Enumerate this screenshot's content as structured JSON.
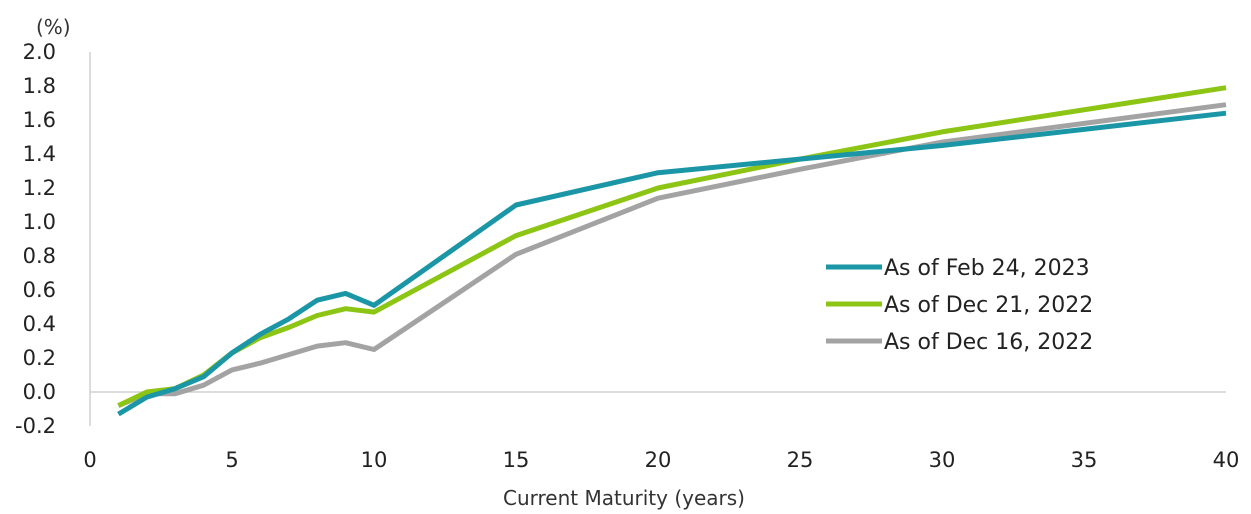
{
  "chart_data": {
    "type": "line",
    "title": "",
    "xlabel": "Current Maturity (years)",
    "ylabel": "(%)",
    "xlim": [
      0,
      40
    ],
    "ylim": [
      -0.2,
      2.0
    ],
    "x_ticks": [
      0,
      5,
      10,
      15,
      20,
      25,
      30,
      35,
      40
    ],
    "y_ticks": [
      -0.2,
      0.0,
      0.2,
      0.4,
      0.6,
      0.8,
      1.0,
      1.2,
      1.4,
      1.6,
      1.8,
      2.0
    ],
    "x_tick_labels": [
      "0",
      "5",
      "10",
      "15",
      "20",
      "25",
      "30",
      "35",
      "40"
    ],
    "y_tick_labels": [
      "-0.2",
      "0.0",
      "0.2",
      "0.4",
      "0.6",
      "0.8",
      "1.0",
      "1.2",
      "1.4",
      "1.6",
      "1.8",
      "2.0"
    ],
    "grid": false,
    "legend_position": "middle-right",
    "series": [
      {
        "name": "As of Feb 24, 2023",
        "color": "#1a96a6",
        "x": [
          1,
          2,
          3,
          4,
          5,
          6,
          7,
          8,
          9,
          10,
          15,
          20,
          25,
          30,
          40
        ],
        "y": [
          -0.13,
          -0.03,
          0.02,
          0.09,
          0.23,
          0.34,
          0.43,
          0.54,
          0.58,
          0.51,
          1.1,
          1.29,
          1.37,
          1.45,
          1.64
        ]
      },
      {
        "name": "As of Dec 21, 2022",
        "color": "#8cc514",
        "x": [
          1,
          2,
          3,
          4,
          5,
          6,
          7,
          8,
          9,
          10,
          15,
          20,
          25,
          30,
          40
        ],
        "y": [
          -0.08,
          0.0,
          0.02,
          0.1,
          0.23,
          0.32,
          0.38,
          0.45,
          0.49,
          0.47,
          0.92,
          1.2,
          1.37,
          1.53,
          1.79
        ]
      },
      {
        "name": "As of Dec 16, 2022",
        "color": "#a3a3a3",
        "x": [
          1,
          2,
          3,
          4,
          5,
          6,
          7,
          8,
          9,
          10,
          15,
          20,
          25,
          30,
          40
        ],
        "y": [
          -0.08,
          -0.01,
          -0.01,
          0.04,
          0.13,
          0.17,
          0.22,
          0.27,
          0.29,
          0.25,
          0.81,
          1.14,
          1.31,
          1.47,
          1.69
        ]
      }
    ]
  }
}
